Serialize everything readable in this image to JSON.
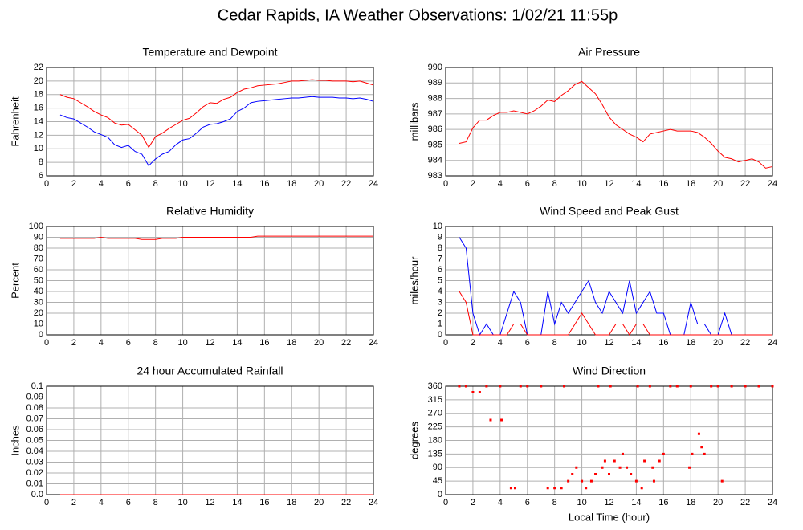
{
  "title": "Cedar Rapids, IA Weather Observations: 1/02/21 11:55p",
  "chart_data": [
    {
      "type": "line",
      "title": "Temperature and Dewpoint",
      "ylabel": "Fahrenheit",
      "x": [
        1,
        1.5,
        2,
        2.5,
        3,
        3.5,
        4,
        4.5,
        5,
        5.5,
        6,
        6.5,
        7,
        7.5,
        8,
        8.5,
        9,
        9.5,
        10,
        10.5,
        11,
        11.5,
        12,
        12.5,
        13,
        13.5,
        14,
        14.5,
        15,
        15.5,
        16,
        16.5,
        17,
        17.5,
        18,
        18.5,
        19,
        19.5,
        20,
        20.5,
        21,
        21.5,
        22,
        22.5,
        23,
        23.5,
        24
      ],
      "series": [
        {
          "color": "#ff0000",
          "values": [
            18,
            17.6,
            17.4,
            16.8,
            16.2,
            15.5,
            15,
            14.6,
            13.8,
            13.5,
            13.6,
            12.8,
            12,
            10.2,
            11.8,
            12.3,
            13,
            13.6,
            14.2,
            14.5,
            15.3,
            16.2,
            16.8,
            16.7,
            17.3,
            17.6,
            18.3,
            18.8,
            19,
            19.3,
            19.4,
            19.5,
            19.6,
            19.8,
            20,
            20,
            20.1,
            20.2,
            20.1,
            20.1,
            20,
            20,
            20,
            19.9,
            20,
            19.7,
            19.4
          ]
        },
        {
          "color": "#0000ff",
          "values": [
            15,
            14.6,
            14.4,
            13.8,
            13.2,
            12.5,
            12.1,
            11.7,
            10.6,
            10.2,
            10.5,
            9.6,
            9.2,
            7.5,
            8.5,
            9.2,
            9.6,
            10.6,
            11.3,
            11.5,
            12.3,
            13.2,
            13.6,
            13.7,
            14,
            14.4,
            15.5,
            16,
            16.8,
            17,
            17.1,
            17.2,
            17.3,
            17.4,
            17.5,
            17.5,
            17.6,
            17.7,
            17.6,
            17.6,
            17.6,
            17.5,
            17.5,
            17.4,
            17.5,
            17.3,
            17
          ]
        }
      ],
      "xlim": [
        0,
        24
      ],
      "xticks": [
        0,
        2,
        4,
        6,
        8,
        10,
        12,
        14,
        16,
        18,
        20,
        22,
        24
      ],
      "ylim": [
        6,
        22
      ],
      "yticks": [
        6,
        8,
        10,
        12,
        14,
        16,
        18,
        20,
        22
      ],
      "grid": true
    },
    {
      "type": "line",
      "title": "Air Pressure",
      "ylabel": "millibars",
      "x": [
        1,
        1.5,
        2,
        2.5,
        3,
        3.5,
        4,
        4.5,
        5,
        5.5,
        6,
        6.5,
        7,
        7.5,
        8,
        8.5,
        9,
        9.5,
        10,
        10.5,
        11,
        11.5,
        12,
        12.5,
        13,
        13.5,
        14,
        14.5,
        15,
        15.5,
        16,
        16.5,
        17,
        17.5,
        18,
        18.5,
        19,
        19.5,
        20,
        20.5,
        21,
        21.5,
        22,
        22.5,
        23,
        23.5,
        24
      ],
      "series": [
        {
          "color": "#ff0000",
          "values": [
            985.1,
            985.2,
            986.1,
            986.6,
            986.6,
            986.9,
            987.1,
            987.1,
            987.2,
            987.1,
            987,
            987.2,
            987.5,
            987.9,
            987.8,
            988.2,
            988.5,
            988.9,
            989.1,
            988.7,
            988.3,
            987.6,
            986.8,
            986.3,
            986,
            985.7,
            985.5,
            985.2,
            985.7,
            985.8,
            985.9,
            986,
            985.9,
            985.9,
            985.9,
            985.8,
            985.5,
            985.1,
            984.6,
            984.2,
            984.1,
            983.9,
            984,
            984.1,
            983.9,
            983.5,
            983.6
          ]
        }
      ],
      "xlim": [
        0,
        24
      ],
      "xticks": [
        0,
        2,
        4,
        6,
        8,
        10,
        12,
        14,
        16,
        18,
        20,
        22,
        24
      ],
      "ylim": [
        983,
        990
      ],
      "yticks": [
        983,
        984,
        985,
        986,
        987,
        988,
        989,
        990
      ],
      "grid": true
    },
    {
      "type": "line",
      "title": "Relative Humidity",
      "ylabel": "Percent",
      "x": [
        1,
        1.5,
        2,
        2.5,
        3,
        3.5,
        4,
        4.5,
        5,
        5.5,
        6,
        6.5,
        7,
        7.5,
        8,
        8.5,
        9,
        9.5,
        10,
        10.5,
        11,
        11.5,
        12,
        12.5,
        13,
        13.5,
        14,
        14.5,
        15,
        15.5,
        16,
        16.5,
        17,
        17.5,
        18,
        18.5,
        19,
        19.5,
        20,
        20.5,
        21,
        21.5,
        22,
        22.5,
        23,
        23.5,
        24
      ],
      "series": [
        {
          "color": "#ff0000",
          "values": [
            89,
            89,
            89,
            89,
            89,
            89,
            90,
            89,
            89,
            89,
            89,
            89,
            88,
            88,
            88,
            89,
            89,
            89,
            90,
            90,
            90,
            90,
            90,
            90,
            90,
            90,
            90,
            90,
            90,
            91,
            91,
            91,
            91,
            91,
            91,
            91,
            91,
            91,
            91,
            91,
            91,
            91,
            91,
            91,
            91,
            91,
            91
          ]
        }
      ],
      "xlim": [
        0,
        24
      ],
      "xticks": [
        0,
        2,
        4,
        6,
        8,
        10,
        12,
        14,
        16,
        18,
        20,
        22,
        24
      ],
      "ylim": [
        0,
        100
      ],
      "yticks": [
        0,
        10,
        20,
        30,
        40,
        50,
        60,
        70,
        80,
        90,
        100
      ],
      "grid": true
    },
    {
      "type": "line",
      "title": "Wind Speed and Peak Gust",
      "ylabel": "miles/hour",
      "x": [
        1,
        1.5,
        2,
        2.5,
        3,
        3.5,
        4,
        4.5,
        5,
        5.5,
        6,
        6.5,
        7,
        7.5,
        8,
        8.5,
        9,
        9.5,
        10,
        10.5,
        11,
        11.5,
        12,
        12.5,
        13,
        13.5,
        14,
        14.5,
        15,
        15.5,
        16,
        16.5,
        17,
        17.5,
        18,
        18.5,
        19,
        19.5,
        20,
        20.5,
        21,
        21.5,
        22,
        22.5,
        23,
        23.5,
        24
      ],
      "series": [
        {
          "color": "#0000ff",
          "values": [
            9,
            8,
            2,
            0,
            1,
            0,
            0,
            2,
            4,
            3,
            0,
            0,
            0,
            4,
            1,
            3,
            2,
            3,
            4,
            5,
            3,
            2,
            4,
            3,
            2,
            5,
            2,
            3,
            4,
            2,
            2,
            0,
            0,
            0,
            3,
            1,
            1,
            0,
            0,
            2,
            0,
            0,
            0,
            0,
            0,
            0,
            0
          ]
        },
        {
          "color": "#ff0000",
          "values": [
            4,
            3,
            0,
            0,
            0,
            0,
            0,
            0,
            1,
            1,
            0,
            0,
            0,
            0,
            0,
            0,
            0,
            1,
            2,
            1,
            0,
            0,
            0,
            1,
            1,
            0,
            1,
            1,
            0,
            0,
            0,
            0,
            0,
            0,
            0,
            0,
            0,
            0,
            0,
            0,
            0,
            0,
            0,
            0,
            0,
            0,
            0
          ]
        }
      ],
      "xlim": [
        0,
        24
      ],
      "xticks": [
        0,
        2,
        4,
        6,
        8,
        10,
        12,
        14,
        16,
        18,
        20,
        22,
        24
      ],
      "ylim": [
        0,
        10
      ],
      "yticks": [
        0,
        1,
        2,
        3,
        4,
        5,
        6,
        7,
        8,
        9,
        10
      ],
      "grid": true
    },
    {
      "type": "line",
      "title": "24 hour Accumulated Rainfall",
      "ylabel": "Inches",
      "x": [
        1,
        24
      ],
      "series": [
        {
          "color": "#ff0000",
          "values": [
            0,
            0
          ]
        }
      ],
      "xlim": [
        0,
        24
      ],
      "xticks": [
        0,
        2,
        4,
        6,
        8,
        10,
        12,
        14,
        16,
        18,
        20,
        22,
        24
      ],
      "ylim": [
        0,
        0.1
      ],
      "yticks": [
        {
          "value": 0,
          "label": "0.0"
        },
        0.01,
        0.02,
        0.03,
        0.04,
        0.05,
        0.06,
        0.07,
        0.08,
        0.09,
        0.1
      ],
      "grid": true
    },
    {
      "type": "scatter",
      "title": "Wind Direction",
      "ylabel": "degrees",
      "xlabel": "Local Time (hour)",
      "color": "#ff0000",
      "x": [
        1,
        1.5,
        3,
        4,
        5.5,
        6,
        7,
        8.7,
        11.2,
        12.1,
        14.1,
        15,
        16.5,
        17,
        18,
        19.5,
        20,
        21,
        22,
        23,
        24,
        2,
        2.5,
        3.3,
        4.1,
        4.8,
        5.1,
        7.5,
        8,
        8.5,
        9,
        9.3,
        9.6,
        10,
        10.3,
        10.7,
        11,
        11.5,
        11.7,
        12,
        12.4,
        12.8,
        13,
        13.3,
        13.6,
        14,
        14.4,
        14.6,
        15.2,
        15.3,
        15.7,
        16,
        17.9,
        18.1,
        18.6,
        18.8,
        19,
        20.3
      ],
      "values": [
        360,
        360,
        360,
        360,
        360,
        360,
        360,
        360,
        360,
        360,
        360,
        360,
        360,
        360,
        360,
        360,
        360,
        360,
        360,
        360,
        360,
        340,
        340,
        248,
        248,
        22,
        22,
        22,
        22,
        22,
        45,
        68,
        90,
        45,
        22,
        45,
        68,
        90,
        112,
        68,
        112,
        90,
        135,
        90,
        68,
        45,
        22,
        112,
        90,
        45,
        112,
        135,
        90,
        135,
        202,
        158,
        135,
        45
      ],
      "xlim": [
        0,
        24
      ],
      "xticks": [
        0,
        2,
        4,
        6,
        8,
        10,
        12,
        14,
        16,
        18,
        20,
        22,
        24
      ],
      "ylim": [
        0,
        360
      ],
      "yticks": [
        0,
        45,
        90,
        135,
        180,
        225,
        270,
        315,
        360
      ],
      "grid": true
    }
  ]
}
